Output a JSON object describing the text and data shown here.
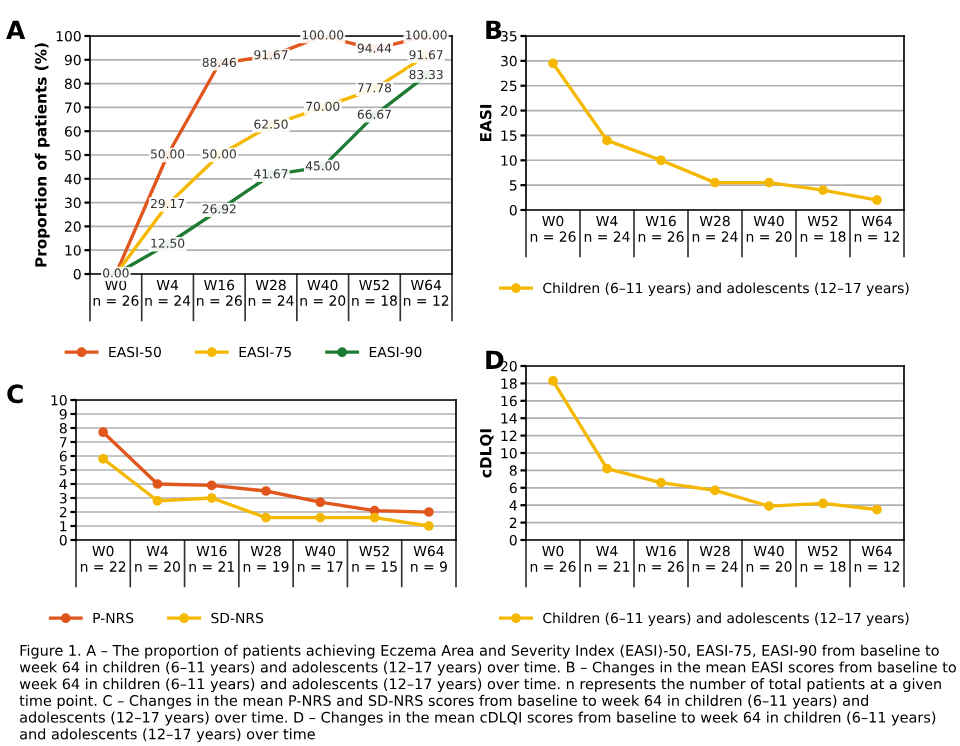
{
  "chart_data": [
    {
      "type": "line",
      "title": "A",
      "ylabel": "Proportion of patients (%)",
      "categories": [
        "W0\nn = 26",
        "W4\nn = 24",
        "W16\nn = 26",
        "W28\nn = 24",
        "W40\nn = 20",
        "W52\nn = 18",
        "W64\nn = 12"
      ],
      "ylim": [
        0,
        100
      ],
      "yticks": [
        0,
        10,
        20,
        30,
        40,
        50,
        60,
        70,
        80,
        90,
        100
      ],
      "grid": "y",
      "legend": "bottom",
      "marker": "circle",
      "series": [
        {
          "name": "EASI-50",
          "color": "#e0561c",
          "values": [
            0,
            50,
            88.46,
            91.67,
            100,
            94.44,
            100
          ],
          "value_labels": [
            null,
            "50.00",
            "88.46",
            "91.67",
            "100.00",
            "94.44",
            "100.00"
          ]
        },
        {
          "name": "EASI-75",
          "color": "#f5b800",
          "values": [
            0,
            29.17,
            50,
            62.5,
            70,
            77.78,
            91.67
          ],
          "value_labels": [
            null,
            "29.17",
            "50.00",
            "62.50",
            "70.00",
            "77.78",
            "91.67"
          ]
        },
        {
          "name": "EASI-90",
          "color": "#1e7b34",
          "values": [
            0,
            12.5,
            26.92,
            41.67,
            45,
            66.67,
            83.33
          ],
          "value_labels": [
            "0.00",
            "12.50",
            "26.92",
            "41.67",
            "45.00",
            "66.67",
            "83.33"
          ]
        }
      ],
      "annotations": [
        "Figure 1. A – The proportion of patients achieving Eczema Area and Severity Index (EASI)-50, EASI-75, EASI-90 from baseline to week 64 in children (6–11 years) and adolescents (12–17 years) over time. B – Changes in the mean EASI scores from baseline to week 64 in children (6–11 years) and adolescents (12–17 years) over time. n represents the number of total patients at a given time point. C – Changes in the mean P-NRS and SD-NRS scores from baseline to week 64 in children (6–11 years) and adolescents (12–17 years) over time. D – Changes in the mean cDLQI scores from baseline to week 64 in children (6–11 years) and adolescents (12–17 years) over time"
      ]
    },
    {
      "type": "line",
      "title": "B",
      "ylabel": "EASI",
      "categories": [
        "W0\nn = 26",
        "W4\nn = 24",
        "W16\nn = 26",
        "W28\nn = 24",
        "W40\nn = 20",
        "W52\nn = 18",
        "W64\nn = 12"
      ],
      "ylim": [
        0,
        35
      ],
      "yticks": [
        0,
        5,
        10,
        15,
        20,
        25,
        30,
        35
      ],
      "grid": "y",
      "legend": "bottom",
      "marker": "circle",
      "series": [
        {
          "name": "Children (6–11 years) and adolescents (12–17 years)",
          "color": "#f5b800",
          "values": [
            29.5,
            14,
            10,
            5.5,
            5.5,
            4,
            2
          ]
        }
      ]
    },
    {
      "type": "line",
      "title": "C",
      "categories": [
        "W0\nn = 22",
        "W4\nn = 20",
        "W16\nn = 21",
        "W28\nn = 19",
        "W40\nn = 17",
        "W52\nn = 15",
        "W64\nn = 9"
      ],
      "ylim": [
        0,
        10
      ],
      "yticks": [
        0,
        1,
        2,
        3,
        4,
        5,
        6,
        7,
        8,
        9,
        10
      ],
      "grid": "y",
      "legend": "bottom",
      "marker": "circle",
      "series": [
        {
          "name": "P-NRS",
          "color": "#e0561c",
          "values": [
            7.7,
            4,
            3.9,
            3.5,
            2.7,
            2.1,
            2
          ]
        },
        {
          "name": "SD-NRS",
          "color": "#f5b800",
          "values": [
            5.8,
            2.8,
            3,
            1.6,
            1.6,
            1.6,
            1
          ]
        }
      ]
    },
    {
      "type": "line",
      "title": "D",
      "ylabel": "cDLQI",
      "categories": [
        "W0\nn = 26",
        "W4\nn = 21",
        "W16\nn = 26",
        "W28\nn = 24",
        "W40\nn = 20",
        "W52\nn = 18",
        "W64\nn = 12"
      ],
      "ylim": [
        0,
        20
      ],
      "yticks": [
        0,
        2,
        4,
        6,
        8,
        10,
        12,
        14,
        16,
        18,
        20
      ],
      "grid": "y",
      "legend": "bottom",
      "marker": "circle",
      "series": [
        {
          "name": "Children (6–11 years) and adolescents (12–17 years)",
          "color": "#f5b800",
          "values": [
            18.3,
            8.2,
            6.6,
            5.7,
            3.9,
            4.2,
            3.5
          ]
        }
      ]
    }
  ]
}
